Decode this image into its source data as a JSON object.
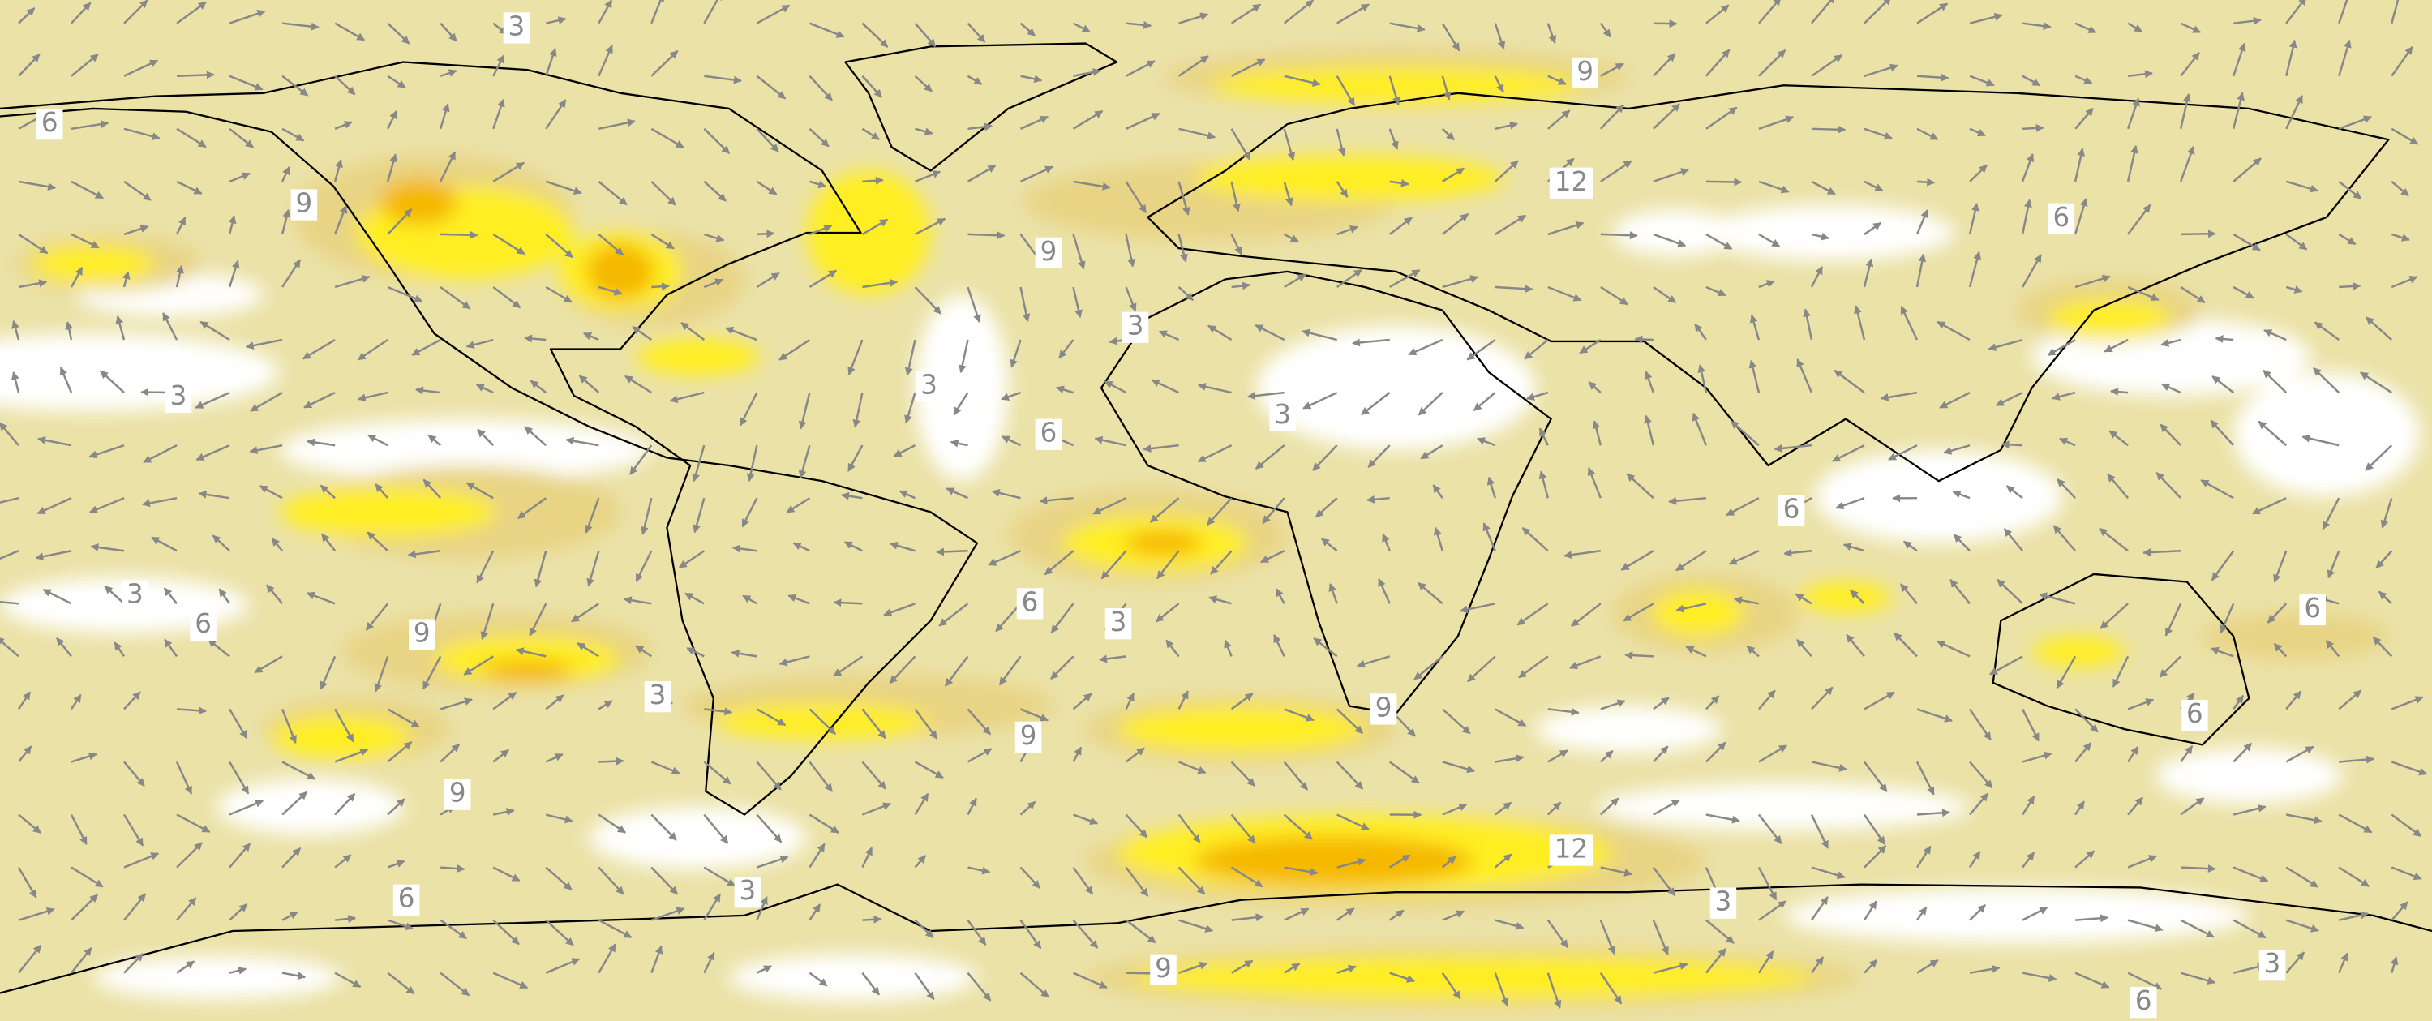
{
  "contour_labels": [
    "3",
    "9",
    "6",
    "9",
    "12",
    "9",
    "6",
    "3",
    "3",
    "3",
    "6",
    "3",
    "6",
    "3",
    "6",
    "9",
    "6",
    "3",
    "6",
    "3",
    "9",
    "6",
    "9",
    "9",
    "12",
    "6",
    "3",
    "3",
    "9",
    "3",
    "6"
  ]
}
